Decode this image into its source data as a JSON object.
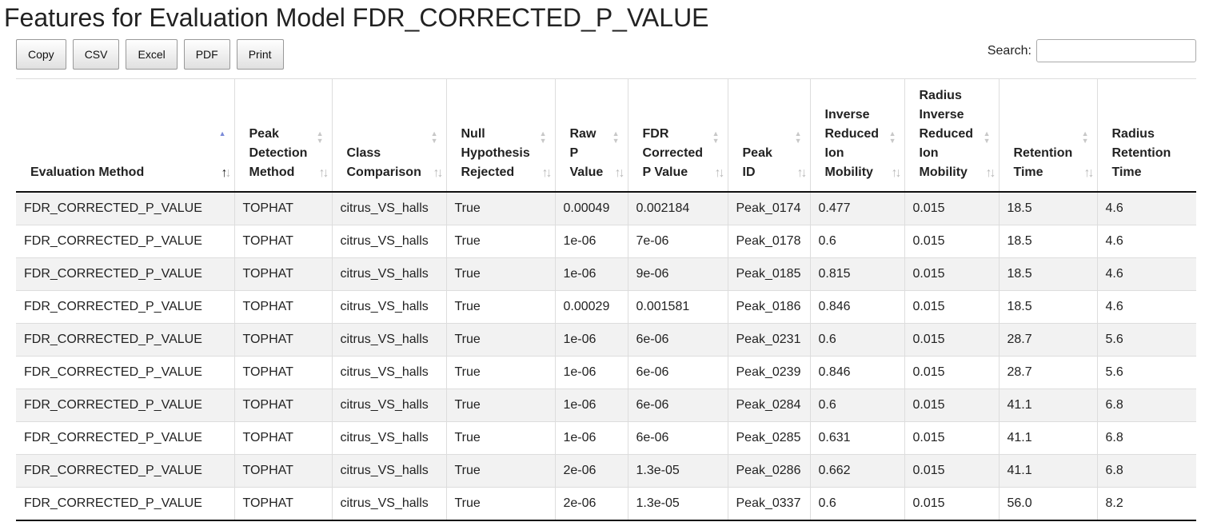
{
  "page": {
    "title": "Features for Evaluation Model FDR_CORRECTED_P_VALUE"
  },
  "toolbar": {
    "buttons": [
      "Copy",
      "CSV",
      "Excel",
      "PDF",
      "Print"
    ]
  },
  "search": {
    "label": "Search:",
    "value": "",
    "placeholder": ""
  },
  "colors": {
    "sort_active": "#7a8ad8",
    "row_stripe": "#f2f2f2",
    "border": "#dddddd"
  },
  "table": {
    "sorted_column": "Evaluation Method",
    "sort_direction": "ascending",
    "columns": [
      [
        "Evaluation Method"
      ],
      [
        "Peak",
        "Detection",
        "Method"
      ],
      [
        "Class",
        "Comparison"
      ],
      [
        "Null",
        "Hypothesis",
        "Rejected"
      ],
      [
        "Raw",
        "P",
        "Value"
      ],
      [
        "FDR",
        "Corrected",
        "P Value"
      ],
      [
        "Peak",
        "ID"
      ],
      [
        "Inverse",
        "Reduced",
        "Ion",
        "Mobility"
      ],
      [
        "Radius",
        "Inverse",
        "Reduced",
        "Ion",
        "Mobility"
      ],
      [
        "Retention",
        "Time"
      ],
      [
        "Radius",
        "Retention",
        "Time"
      ]
    ],
    "rows": [
      [
        "FDR_CORRECTED_P_VALUE",
        "TOPHAT",
        "citrus_VS_halls",
        "True",
        "0.00049",
        "0.002184",
        "Peak_0174",
        "0.477",
        "0.015",
        "18.5",
        "4.6"
      ],
      [
        "FDR_CORRECTED_P_VALUE",
        "TOPHAT",
        "citrus_VS_halls",
        "True",
        "1e-06",
        "7e-06",
        "Peak_0178",
        "0.6",
        "0.015",
        "18.5",
        "4.6"
      ],
      [
        "FDR_CORRECTED_P_VALUE",
        "TOPHAT",
        "citrus_VS_halls",
        "True",
        "1e-06",
        "9e-06",
        "Peak_0185",
        "0.815",
        "0.015",
        "18.5",
        "4.6"
      ],
      [
        "FDR_CORRECTED_P_VALUE",
        "TOPHAT",
        "citrus_VS_halls",
        "True",
        "0.00029",
        "0.001581",
        "Peak_0186",
        "0.846",
        "0.015",
        "18.5",
        "4.6"
      ],
      [
        "FDR_CORRECTED_P_VALUE",
        "TOPHAT",
        "citrus_VS_halls",
        "True",
        "1e-06",
        "6e-06",
        "Peak_0231",
        "0.6",
        "0.015",
        "28.7",
        "5.6"
      ],
      [
        "FDR_CORRECTED_P_VALUE",
        "TOPHAT",
        "citrus_VS_halls",
        "True",
        "1e-06",
        "6e-06",
        "Peak_0239",
        "0.846",
        "0.015",
        "28.7",
        "5.6"
      ],
      [
        "FDR_CORRECTED_P_VALUE",
        "TOPHAT",
        "citrus_VS_halls",
        "True",
        "1e-06",
        "6e-06",
        "Peak_0284",
        "0.6",
        "0.015",
        "41.1",
        "6.8"
      ],
      [
        "FDR_CORRECTED_P_VALUE",
        "TOPHAT",
        "citrus_VS_halls",
        "True",
        "1e-06",
        "6e-06",
        "Peak_0285",
        "0.631",
        "0.015",
        "41.1",
        "6.8"
      ],
      [
        "FDR_CORRECTED_P_VALUE",
        "TOPHAT",
        "citrus_VS_halls",
        "True",
        "2e-06",
        "1.3e-05",
        "Peak_0286",
        "0.662",
        "0.015",
        "41.1",
        "6.8"
      ],
      [
        "FDR_CORRECTED_P_VALUE",
        "TOPHAT",
        "citrus_VS_halls",
        "True",
        "2e-06",
        "1.3e-05",
        "Peak_0337",
        "0.6",
        "0.015",
        "56.0",
        "8.2"
      ]
    ]
  }
}
